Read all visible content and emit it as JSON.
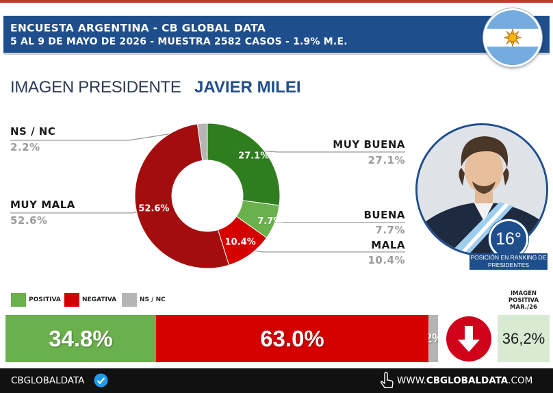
{
  "header": {
    "line1": "ENCUESTA ARGENTINA - CB GLOBAL DATA",
    "line2": "5 AL 9 DE MAYO DE 2026 - MUESTRA 2582 CASOS - 1.9% M.E."
  },
  "title": {
    "left": "IMAGEN PRESIDENTE",
    "right": "JAVIER MILEI"
  },
  "chart_data": [
    {
      "type": "pie",
      "slices": [
        {
          "label": "MUY BUENA",
          "value": 27.1,
          "display": "27.1%",
          "color": "#2e7d1f"
        },
        {
          "label": "BUENA",
          "value": 7.7,
          "display": "7.7%",
          "color": "#6ab04c"
        },
        {
          "label": "MALA",
          "value": 10.4,
          "display": "10.4%",
          "color": "#d40000"
        },
        {
          "label": "MUY MALA",
          "value": 52.6,
          "display": "52.6%",
          "color": "#a30d0d"
        },
        {
          "label": "NS / NC",
          "value": 2.2,
          "display": "2.2%",
          "color": "#b5b5b5"
        }
      ]
    },
    {
      "type": "bar",
      "orientation": "horizontal-stacked",
      "legend": [
        {
          "label": "POSITIVA",
          "color": "#6ab04c"
        },
        {
          "label": "NEGATIVA",
          "color": "#d40000"
        },
        {
          "label": "NS / NC",
          "color": "#b5b5b5"
        }
      ],
      "values": [
        {
          "category": "POSITIVA",
          "value": 34.8,
          "display": "34.8%"
        },
        {
          "category": "NEGATIVA",
          "value": 63.0,
          "display": "63.0%"
        },
        {
          "category": "NS / NC",
          "value": 2.2,
          "display": "2.2%"
        }
      ]
    }
  ],
  "legend_labels": {
    "ns_nc_left": "NS / NC",
    "ns_nc_left_value": "2.2%",
    "muy_mala": "MUY MALA",
    "muy_mala_value": "52.6%",
    "muy_buena": "MUY BUENA",
    "muy_buena_value": "27.1%",
    "buena": "BUENA",
    "buena_value": "7.7%",
    "mala": "MALA",
    "mala_value": "10.4%"
  },
  "ranking": {
    "position": "16°",
    "caption": "POSICIÓN EN RANKING DE PRESIDENTES"
  },
  "previous": {
    "caption": "IMAGEN POSITIVA MAR./26",
    "value": "36,2%"
  },
  "trend": {
    "direction": "down",
    "icon": "down-arrow-icon",
    "color": "#d0021b"
  },
  "footer": {
    "brand": "CBGLOBALDATA",
    "site_prefix": "WWW.",
    "site_bold": "CBGLOBALDATA",
    "site_suffix": ".COM"
  },
  "colors": {
    "header_bg": "#1f4e8c",
    "flag_blue": "#74acdf",
    "sun": "#f6b40e"
  }
}
